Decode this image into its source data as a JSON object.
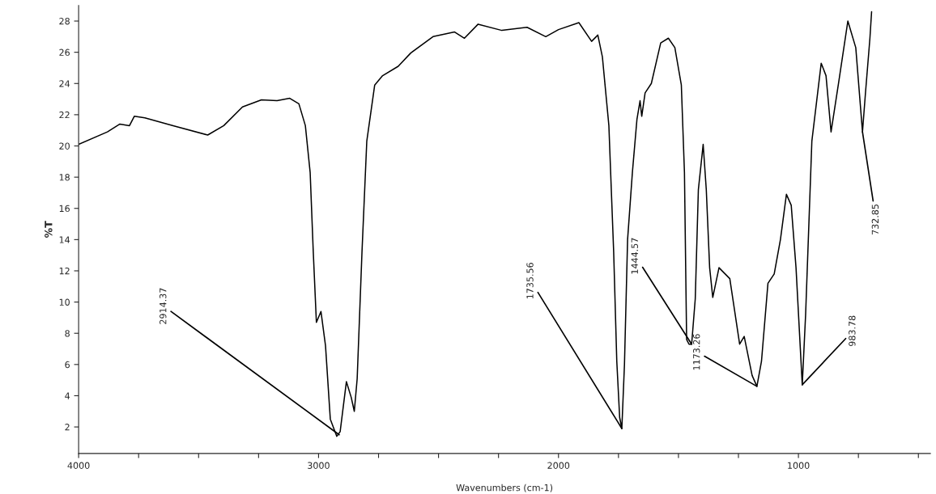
{
  "chart_data": {
    "type": "line",
    "xlabel": "Wavenumbers (cm-1)",
    "ylabel": "%T",
    "xlim": [
      4000,
      450
    ],
    "ylim": [
      0.3,
      29
    ],
    "xticks": [
      4000,
      {
        "value": 3750,
        "label": null
      },
      {
        "value": 3500,
        "label": null
      },
      {
        "value": 3250,
        "label": null
      },
      3000,
      {
        "value": 2750,
        "label": null
      },
      {
        "value": 2500,
        "label": null
      },
      {
        "value": 2250,
        "label": null
      },
      2000,
      {
        "value": 1750,
        "label": null
      },
      {
        "value": 1500,
        "label": null
      },
      {
        "value": 1250,
        "label": null
      },
      1000,
      {
        "value": 750,
        "label": null
      },
      {
        "value": 500,
        "label": null
      }
    ],
    "yticks": [
      2,
      4,
      6,
      8,
      10,
      12,
      14,
      16,
      18,
      20,
      22,
      24,
      26,
      28
    ],
    "grid": false,
    "legend": false,
    "marker": "none",
    "line_style": "solid",
    "series": [
      {
        "color": "#000000",
        "x": [
          4000,
          3880,
          3828,
          3788,
          3768,
          3724,
          3606,
          3462,
          3395,
          3317,
          3238,
          3173,
          3120,
          3082,
          3055,
          3035,
          3022,
          3009,
          2990,
          2971,
          2951,
          2924,
          2910,
          2884,
          2864,
          2851,
          2839,
          2819,
          2799,
          2766,
          2733,
          2668,
          2616,
          2523,
          2433,
          2392,
          2335,
          2236,
          2131,
          2053,
          2000,
          1915,
          1862,
          1836,
          1817,
          1790,
          1770,
          1757,
          1745,
          1736,
          1725,
          1712,
          1692,
          1673,
          1660,
          1653,
          1639,
          1613,
          1574,
          1542,
          1515,
          1488,
          1475,
          1466,
          1456,
          1445,
          1430,
          1417,
          1397,
          1384,
          1370,
          1357,
          1331,
          1286,
          1245,
          1226,
          1193,
          1173,
          1154,
          1127,
          1101,
          1075,
          1050,
          1030,
          1010,
          984,
          970,
          944,
          905,
          885,
          864,
          832,
          794,
          761,
          733,
          721,
          702,
          695
        ],
        "values": [
          20.1,
          20.9,
          21.4,
          21.3,
          21.9,
          21.8,
          21.3,
          20.7,
          21.3,
          22.5,
          22.95,
          22.9,
          23.05,
          22.7,
          21.3,
          18.3,
          13.2,
          8.7,
          9.4,
          7.2,
          2.5,
          1.4,
          1.7,
          4.9,
          3.9,
          3.0,
          5.1,
          13.2,
          20.3,
          23.9,
          24.5,
          25.1,
          25.95,
          27.0,
          27.3,
          26.9,
          27.8,
          27.4,
          27.6,
          27.0,
          27.45,
          27.9,
          26.7,
          27.1,
          25.7,
          21.3,
          13.2,
          6.2,
          2.6,
          1.9,
          6.0,
          14.0,
          18.3,
          21.7,
          22.9,
          21.9,
          23.4,
          24.0,
          26.6,
          26.9,
          26.3,
          23.9,
          18.3,
          7.6,
          7.3,
          7.3,
          10.2,
          17.2,
          20.1,
          17.2,
          12.2,
          10.3,
          12.2,
          11.5,
          7.3,
          7.8,
          5.3,
          4.6,
          6.2,
          11.2,
          11.8,
          14.0,
          16.9,
          16.2,
          12.2,
          4.7,
          9.2,
          20.3,
          25.3,
          24.5,
          20.9,
          24.1,
          28.0,
          26.3,
          20.9,
          23.3,
          26.9,
          28.6
        ]
      }
    ],
    "annotations": [
      {
        "text": "2914.37",
        "x": 2914,
        "y": 1.5
      },
      {
        "text": "1735.56",
        "x": 1736,
        "y": 1.9
      },
      {
        "text": "1444.57",
        "x": 1445,
        "y": 7.3
      },
      {
        "text": "1173.26",
        "x": 1173,
        "y": 4.6
      },
      {
        "text": "983.78",
        "x": 984,
        "y": 4.7
      },
      {
        "text": "732.85",
        "x": 733,
        "y": 20.9
      }
    ]
  }
}
